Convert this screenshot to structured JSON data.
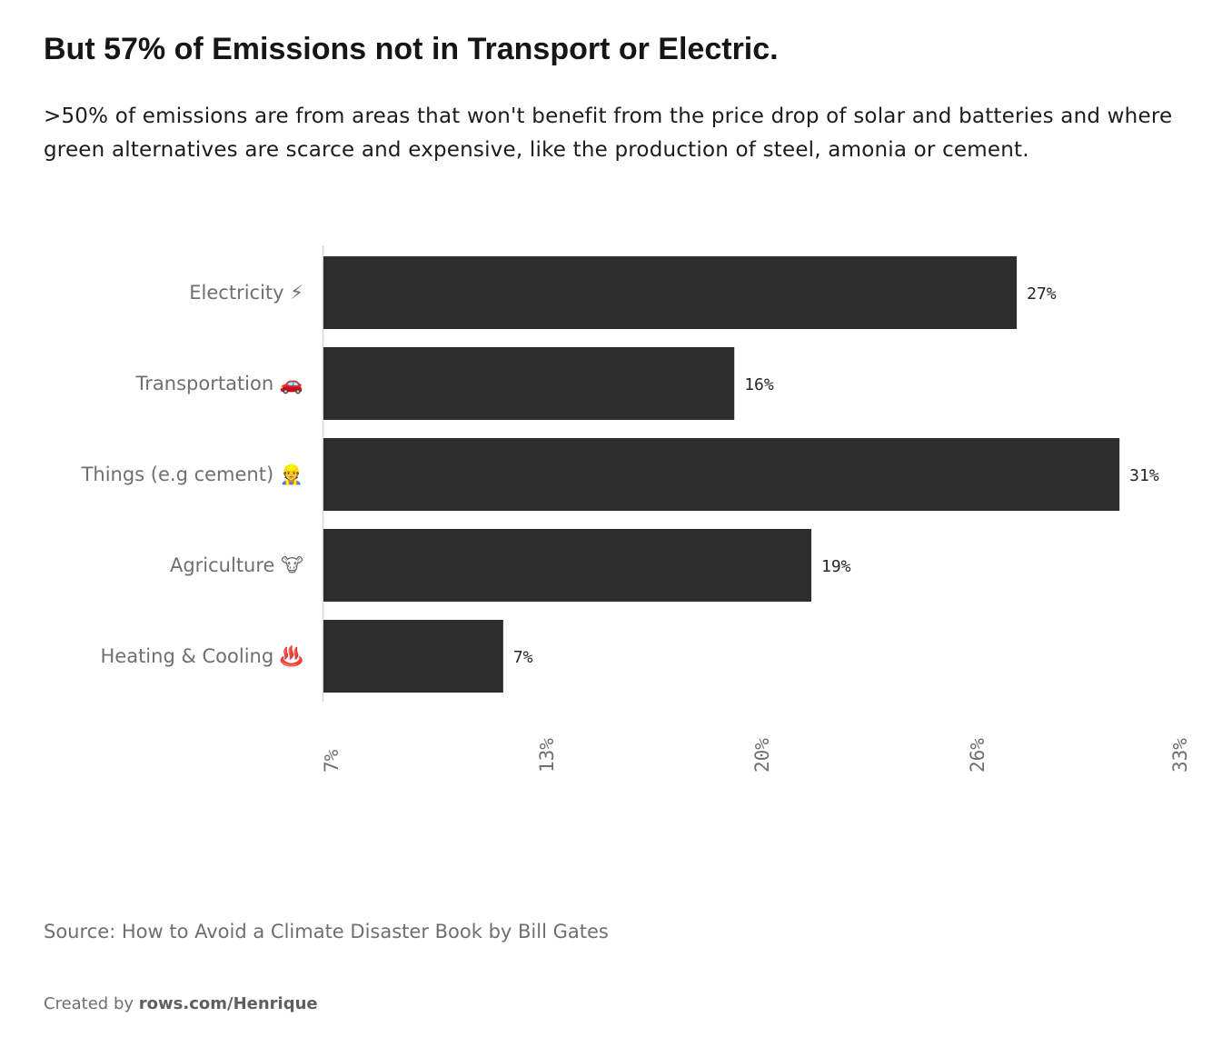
{
  "title": "But 57% of Emissions not in Transport or Electric.",
  "subtitle": ">50% of emissions are from areas that won't benefit from the price drop of solar and batteries and where green alternatives are scarce and expensive, like the production of steel, amonia or cement.",
  "chart_data": {
    "type": "bar",
    "orientation": "horizontal",
    "categories": [
      "Electricity ⚡",
      "Transportation 🚗",
      "Things (e.g cement) 👷",
      "Agriculture 🐮",
      "Heating & Cooling ♨️"
    ],
    "values": [
      27,
      16,
      31,
      19,
      7
    ],
    "value_labels": [
      "27%",
      "16%",
      "31%",
      "19%",
      "7%"
    ],
    "xlim": [
      7,
      33
    ],
    "x_ticks": [
      "7%",
      "13%",
      "20%",
      "26%",
      "33%"
    ],
    "x_tick_values": [
      6.5,
      13,
      19.5,
      26,
      32.5
    ],
    "bar_color": "#2d2d2d",
    "grid": false,
    "title": "But 57% of Emissions not in Transport or Electric."
  },
  "source": "Source: How to Avoid a Climate Disaster Book by Bill Gates",
  "credit": {
    "prefix": "Created by",
    "link": "rows.com/Henrique"
  }
}
